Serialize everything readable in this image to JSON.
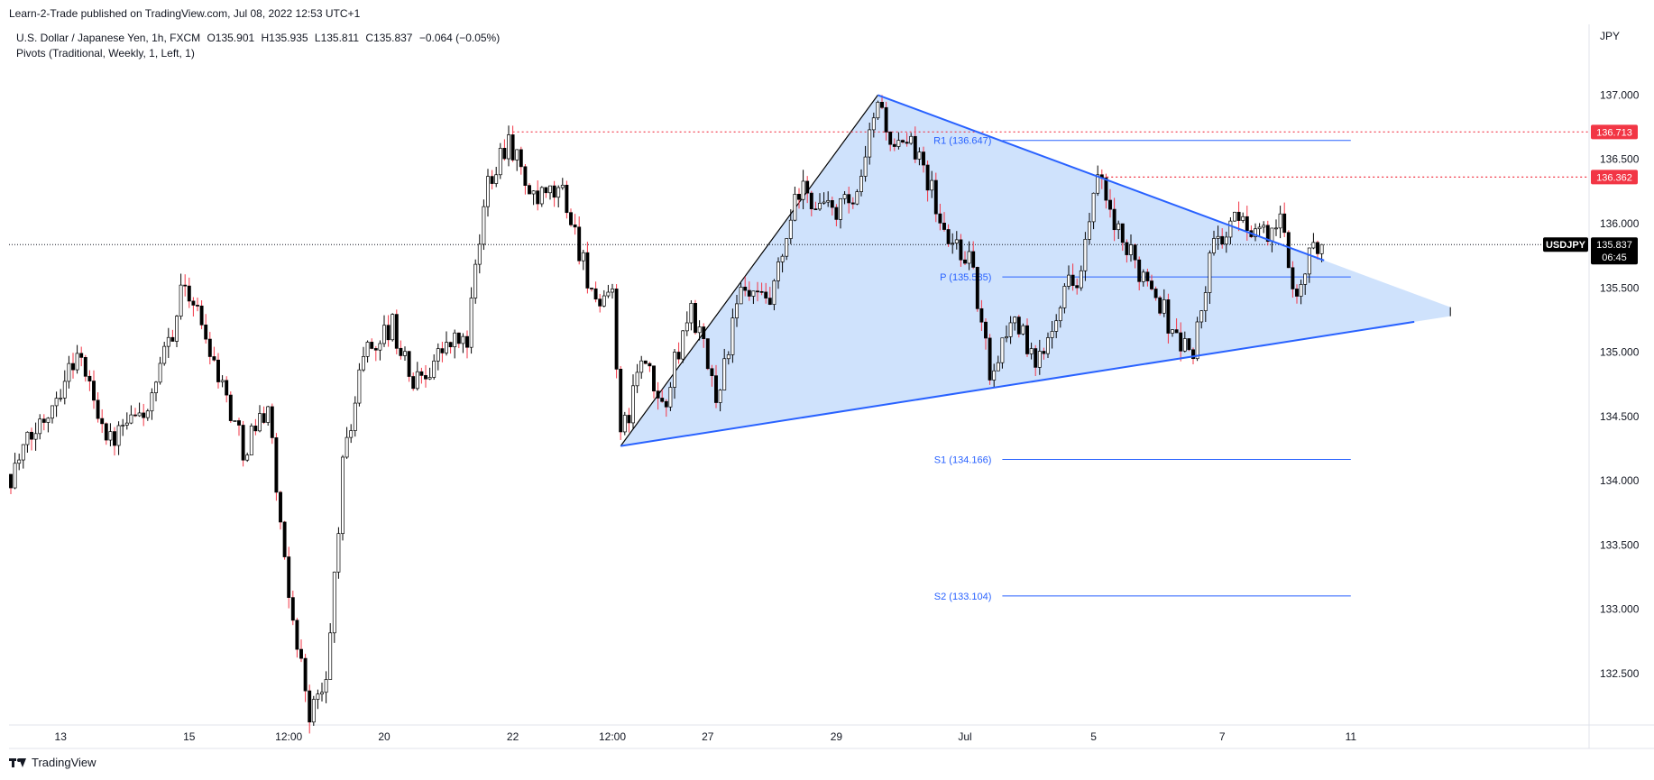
{
  "header": {
    "published_line": "Learn-2-Trade published on TradingView.com, Jul 08, 2022 12:53 UTC+1",
    "symbol_line": {
      "name": "U.S. Dollar / Japanese Yen, 1h, FXCM",
      "open": "O135.901",
      "high": "H135.935",
      "low": "L135.811",
      "close": "C135.837",
      "change": "−0.064 (−0.05%)"
    },
    "indicator_line": "Pivots (Traditional, Weekly, 1, Left, 1)"
  },
  "brand": {
    "name": "TradingView",
    "logo_icon": "tradingview-logo-icon"
  },
  "colors": {
    "up_candle": "#ffffff",
    "down_candle": "#000000",
    "wick_up": "#000000",
    "wick_down": "#f23645",
    "triangle_fill": "#cce0fc",
    "triangle_edge": "#2962ff",
    "pivot_line": "#2962ff",
    "resistance_line": "#f23645",
    "price_tag": "#000000"
  },
  "chart_data": {
    "type": "candlestick",
    "symbol": "USDJPY",
    "currency_label": "JPY",
    "interval": "1h",
    "ylim": [
      132.1,
      137.55
    ],
    "y_ticks": [
      {
        "value": 132.5,
        "label": "132.500"
      },
      {
        "value": 133.0,
        "label": "133.000"
      },
      {
        "value": 133.5,
        "label": "133.500"
      },
      {
        "value": 134.0,
        "label": "134.000"
      },
      {
        "value": 134.5,
        "label": "134.500"
      },
      {
        "value": 135.0,
        "label": "135.000"
      },
      {
        "value": 135.5,
        "label": "135.500"
      },
      {
        "value": 136.0,
        "label": "136.000"
      },
      {
        "value": 136.5,
        "label": "136.500"
      },
      {
        "value": 137.0,
        "label": "137.000"
      }
    ],
    "x_ticks": [
      {
        "bar": 12,
        "label": "13"
      },
      {
        "bar": 43,
        "label": "15"
      },
      {
        "bar": 67,
        "label": "12:00"
      },
      {
        "bar": 90,
        "label": "20"
      },
      {
        "bar": 121,
        "label": "22"
      },
      {
        "bar": 145,
        "label": "12:00"
      },
      {
        "bar": 168,
        "label": "27"
      },
      {
        "bar": 199,
        "label": "29"
      },
      {
        "bar": 230,
        "label": "Jul"
      },
      {
        "bar": 261,
        "label": "5"
      },
      {
        "bar": 292,
        "label": "7"
      },
      {
        "bar": 323,
        "label": "11"
      }
    ],
    "bar_count": 347,
    "last_price": {
      "value": 135.837,
      "label": "135.837",
      "countdown": "06:45",
      "symbol_tag": "USDJPY"
    },
    "anchors": [
      {
        "bar": 0,
        "price": 134.05
      },
      {
        "bar": 8,
        "price": 134.5
      },
      {
        "bar": 16,
        "price": 135.0
      },
      {
        "bar": 24,
        "price": 134.3
      },
      {
        "bar": 34,
        "price": 134.6
      },
      {
        "bar": 42,
        "price": 135.55
      },
      {
        "bar": 48,
        "price": 135.05
      },
      {
        "bar": 56,
        "price": 134.25
      },
      {
        "bar": 62,
        "price": 134.6
      },
      {
        "bar": 66,
        "price": 133.3
      },
      {
        "bar": 72,
        "price": 132.2
      },
      {
        "bar": 76,
        "price": 132.4
      },
      {
        "bar": 80,
        "price": 134.1
      },
      {
        "bar": 85,
        "price": 135.0
      },
      {
        "bar": 92,
        "price": 135.2
      },
      {
        "bar": 97,
        "price": 134.75
      },
      {
        "bar": 105,
        "price": 135.05
      },
      {
        "bar": 110,
        "price": 135.1
      },
      {
        "bar": 115,
        "price": 136.35
      },
      {
        "bar": 120,
        "price": 136.68
      },
      {
        "bar": 126,
        "price": 136.15
      },
      {
        "bar": 133,
        "price": 136.25
      },
      {
        "bar": 139,
        "price": 135.6
      },
      {
        "bar": 142,
        "price": 135.25
      },
      {
        "bar": 145,
        "price": 135.55
      },
      {
        "bar": 147,
        "price": 134.28
      },
      {
        "bar": 152,
        "price": 134.95
      },
      {
        "bar": 157,
        "price": 134.55
      },
      {
        "bar": 164,
        "price": 135.35
      },
      {
        "bar": 170,
        "price": 134.65
      },
      {
        "bar": 176,
        "price": 135.45
      },
      {
        "bar": 183,
        "price": 135.35
      },
      {
        "bar": 190,
        "price": 136.25
      },
      {
        "bar": 197,
        "price": 136.1
      },
      {
        "bar": 204,
        "price": 136.15
      },
      {
        "bar": 209,
        "price": 136.98
      },
      {
        "bar": 213,
        "price": 136.55
      },
      {
        "bar": 219,
        "price": 136.6
      },
      {
        "bar": 225,
        "price": 135.9
      },
      {
        "bar": 231,
        "price": 135.75
      },
      {
        "bar": 236,
        "price": 134.85
      },
      {
        "bar": 242,
        "price": 135.3
      },
      {
        "bar": 247,
        "price": 134.85
      },
      {
        "bar": 253,
        "price": 135.45
      },
      {
        "bar": 258,
        "price": 135.65
      },
      {
        "bar": 262,
        "price": 136.35
      },
      {
        "bar": 268,
        "price": 135.8
      },
      {
        "bar": 275,
        "price": 135.55
      },
      {
        "bar": 281,
        "price": 135.1
      },
      {
        "bar": 285,
        "price": 135.0
      },
      {
        "bar": 290,
        "price": 135.85
      },
      {
        "bar": 297,
        "price": 136.05
      },
      {
        "bar": 302,
        "price": 135.9
      },
      {
        "bar": 306,
        "price": 136.0
      },
      {
        "bar": 310,
        "price": 135.45
      },
      {
        "bar": 313,
        "price": 135.75
      },
      {
        "bar": 316,
        "price": 135.84
      }
    ],
    "pivots": [
      {
        "label": "R1 (136.647)",
        "value": 136.647,
        "bar_start": 239,
        "bar_end": 323
      },
      {
        "label": "P (135.585)",
        "value": 135.585,
        "bar_start": 239,
        "bar_end": 323
      },
      {
        "label": "S1 (134.166)",
        "value": 134.166,
        "bar_start": 239,
        "bar_end": 323
      },
      {
        "label": "S2 (133.104)",
        "value": 133.104,
        "bar_start": 239,
        "bar_end": 323
      }
    ],
    "resistance_levels": [
      {
        "value": 136.713,
        "label": "136.713",
        "bar_start": 121
      },
      {
        "value": 136.362,
        "label": "136.362",
        "bar_start": 262
      }
    ],
    "triangle": {
      "apex_high": {
        "bar": 209,
        "price": 137.0
      },
      "apex_low": {
        "bar": 147,
        "price": 134.27
      },
      "upper_line_end": {
        "bar": 347,
        "price": 135.35
      },
      "lower_line_end": {
        "bar": 347,
        "price": 135.28
      }
    }
  }
}
